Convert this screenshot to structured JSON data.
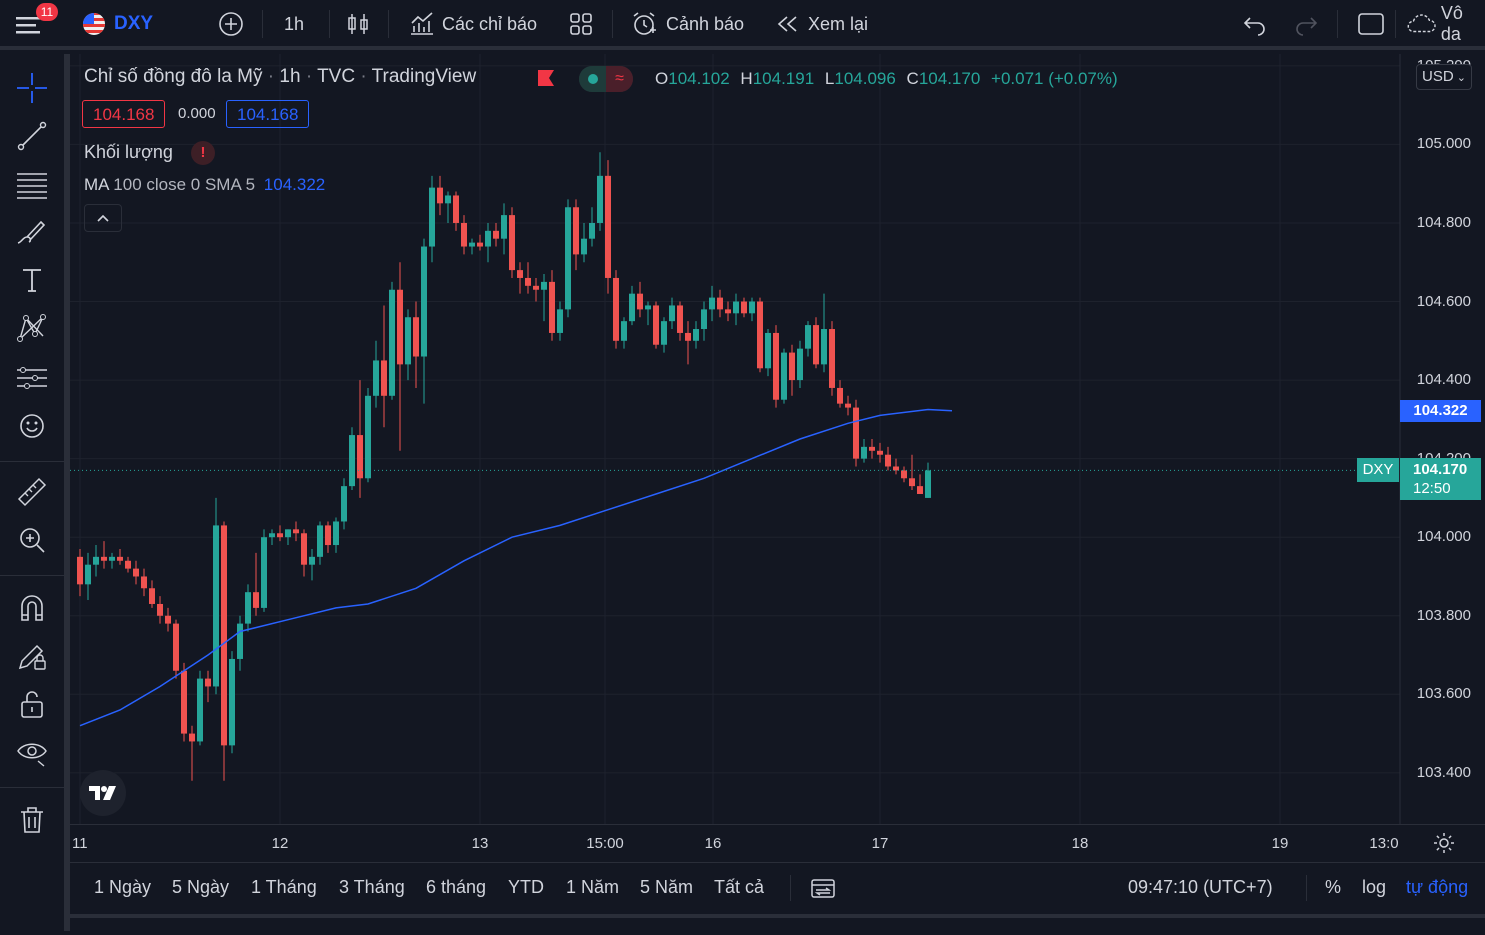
{
  "topbar": {
    "notification_count": "11",
    "symbol": "DXY",
    "interval": "1h",
    "indicators_label": "Các chỉ báo",
    "alerts_label": "Cảnh báo",
    "replay_label": "Xem lại",
    "right_label": "Vô da"
  },
  "legend": {
    "title": "Chỉ số đồng đô la Mỹ",
    "interval": "1h",
    "exchange": "TVC",
    "source": "TradingView",
    "open_label": "O",
    "open": "104.102",
    "high_label": "H",
    "high": "104.191",
    "low_label": "L",
    "low": "104.096",
    "close_label": "C",
    "close": "104.170",
    "change": "+0.071 (+0.07%)",
    "bid": "104.168",
    "spread": "0.000",
    "ask": "104.168",
    "volume_label": "Khối lượng",
    "volume_warning": "!",
    "ma_label": "MA",
    "ma_params": "100 close 0 SMA 5",
    "ma_value": "104.322"
  },
  "price_axis": {
    "currency": "USD",
    "ticks": [
      "105.200",
      "105.000",
      "104.800",
      "104.600",
      "104.400",
      "104.200",
      "104.000",
      "103.800",
      "103.600",
      "103.400"
    ],
    "ma_tag": "104.322",
    "last_symbol": "DXY",
    "last_price": "104.170",
    "countdown": "12:50"
  },
  "time_axis": {
    "labels": [
      "11",
      "12",
      "13",
      "15:00",
      "16",
      "17",
      "18",
      "19",
      "13:0"
    ]
  },
  "bottombar": {
    "ranges": [
      "1 Ngày",
      "5 Ngày",
      "1 Tháng",
      "3 Tháng",
      "6 tháng",
      "YTD",
      "1 Năm",
      "5 Năm",
      "Tất cả"
    ],
    "clock": "09:47:10 (UTC+7)",
    "percent_label": "%",
    "log_label": "log",
    "auto_label": "tự động"
  },
  "colors": {
    "up": "#26a69a",
    "down": "#ef5350",
    "ma": "#2962ff",
    "background": "#131722"
  },
  "chart_data": {
    "type": "candlestick",
    "ylim": [
      103.28,
      105.22
    ],
    "y_ticks": [
      105.2,
      105.0,
      104.8,
      104.6,
      104.4,
      104.2,
      104.0,
      103.8,
      103.6,
      103.4
    ],
    "last_price": 104.17,
    "candles": [
      {
        "o": 103.95,
        "h": 103.97,
        "l": 103.85,
        "c": 103.88
      },
      {
        "o": 103.88,
        "h": 103.96,
        "l": 103.84,
        "c": 103.93
      },
      {
        "o": 103.93,
        "h": 103.98,
        "l": 103.9,
        "c": 103.95
      },
      {
        "o": 103.95,
        "h": 103.99,
        "l": 103.92,
        "c": 103.94
      },
      {
        "o": 103.94,
        "h": 103.96,
        "l": 103.92,
        "c": 103.95
      },
      {
        "o": 103.95,
        "h": 103.97,
        "l": 103.93,
        "c": 103.94
      },
      {
        "o": 103.94,
        "h": 103.95,
        "l": 103.91,
        "c": 103.92
      },
      {
        "o": 103.92,
        "h": 103.94,
        "l": 103.88,
        "c": 103.9
      },
      {
        "o": 103.9,
        "h": 103.92,
        "l": 103.85,
        "c": 103.87
      },
      {
        "o": 103.87,
        "h": 103.89,
        "l": 103.82,
        "c": 103.83
      },
      {
        "o": 103.83,
        "h": 103.85,
        "l": 103.78,
        "c": 103.8
      },
      {
        "o": 103.8,
        "h": 103.82,
        "l": 103.76,
        "c": 103.78
      },
      {
        "o": 103.78,
        "h": 103.79,
        "l": 103.64,
        "c": 103.66
      },
      {
        "o": 103.66,
        "h": 103.68,
        "l": 103.48,
        "c": 103.5
      },
      {
        "o": 103.5,
        "h": 103.52,
        "l": 103.38,
        "c": 103.48
      },
      {
        "o": 103.48,
        "h": 103.66,
        "l": 103.47,
        "c": 103.64
      },
      {
        "o": 103.64,
        "h": 103.66,
        "l": 103.58,
        "c": 103.62
      },
      {
        "o": 103.62,
        "h": 104.1,
        "l": 103.6,
        "c": 104.03
      },
      {
        "o": 104.03,
        "h": 104.04,
        "l": 103.38,
        "c": 103.47
      },
      {
        "o": 103.47,
        "h": 103.71,
        "l": 103.45,
        "c": 103.69
      },
      {
        "o": 103.69,
        "h": 103.8,
        "l": 103.66,
        "c": 103.78
      },
      {
        "o": 103.78,
        "h": 103.88,
        "l": 103.76,
        "c": 103.86
      },
      {
        "o": 103.86,
        "h": 103.96,
        "l": 103.8,
        "c": 103.82
      },
      {
        "o": 103.82,
        "h": 104.02,
        "l": 103.81,
        "c": 104.0
      },
      {
        "o": 104.0,
        "h": 104.02,
        "l": 103.98,
        "c": 104.01
      },
      {
        "o": 104.01,
        "h": 104.03,
        "l": 103.99,
        "c": 104.0
      },
      {
        "o": 104.0,
        "h": 104.02,
        "l": 103.98,
        "c": 104.02
      },
      {
        "o": 104.02,
        "h": 104.04,
        "l": 103.99,
        "c": 104.01
      },
      {
        "o": 104.01,
        "h": 104.02,
        "l": 103.9,
        "c": 103.93
      },
      {
        "o": 103.93,
        "h": 103.97,
        "l": 103.89,
        "c": 103.95
      },
      {
        "o": 103.95,
        "h": 104.04,
        "l": 103.93,
        "c": 104.03
      },
      {
        "o": 104.03,
        "h": 104.04,
        "l": 103.96,
        "c": 103.98
      },
      {
        "o": 103.98,
        "h": 104.05,
        "l": 103.96,
        "c": 104.04
      },
      {
        "o": 104.04,
        "h": 104.15,
        "l": 104.02,
        "c": 104.13
      },
      {
        "o": 104.13,
        "h": 104.28,
        "l": 104.12,
        "c": 104.26
      },
      {
        "o": 104.26,
        "h": 104.4,
        "l": 104.1,
        "c": 104.15
      },
      {
        "o": 104.15,
        "h": 104.38,
        "l": 104.14,
        "c": 104.36
      },
      {
        "o": 104.36,
        "h": 104.5,
        "l": 104.33,
        "c": 104.45
      },
      {
        "o": 104.45,
        "h": 104.59,
        "l": 104.28,
        "c": 104.36
      },
      {
        "o": 104.36,
        "h": 104.65,
        "l": 104.35,
        "c": 104.63
      },
      {
        "o": 104.63,
        "h": 104.7,
        "l": 104.22,
        "c": 104.44
      },
      {
        "o": 104.44,
        "h": 104.58,
        "l": 104.4,
        "c": 104.56
      },
      {
        "o": 104.56,
        "h": 104.6,
        "l": 104.38,
        "c": 104.46
      },
      {
        "o": 104.46,
        "h": 104.76,
        "l": 104.34,
        "c": 104.74
      },
      {
        "o": 104.74,
        "h": 104.92,
        "l": 104.7,
        "c": 104.89
      },
      {
        "o": 104.89,
        "h": 104.92,
        "l": 104.82,
        "c": 104.85
      },
      {
        "o": 104.85,
        "h": 104.88,
        "l": 104.8,
        "c": 104.87
      },
      {
        "o": 104.87,
        "h": 104.88,
        "l": 104.78,
        "c": 104.8
      },
      {
        "o": 104.8,
        "h": 104.82,
        "l": 104.72,
        "c": 104.74
      },
      {
        "o": 104.74,
        "h": 104.76,
        "l": 104.72,
        "c": 104.75
      },
      {
        "o": 104.75,
        "h": 104.77,
        "l": 104.73,
        "c": 104.74
      },
      {
        "o": 104.74,
        "h": 104.8,
        "l": 104.7,
        "c": 104.78
      },
      {
        "o": 104.78,
        "h": 104.8,
        "l": 104.74,
        "c": 104.76
      },
      {
        "o": 104.76,
        "h": 104.85,
        "l": 104.72,
        "c": 104.82
      },
      {
        "o": 104.82,
        "h": 104.84,
        "l": 104.66,
        "c": 104.68
      },
      {
        "o": 104.68,
        "h": 104.7,
        "l": 104.62,
        "c": 104.66
      },
      {
        "o": 104.66,
        "h": 104.7,
        "l": 104.62,
        "c": 104.64
      },
      {
        "o": 104.64,
        "h": 104.66,
        "l": 104.6,
        "c": 104.63
      },
      {
        "o": 104.63,
        "h": 104.67,
        "l": 104.55,
        "c": 104.65
      },
      {
        "o": 104.65,
        "h": 104.68,
        "l": 104.5,
        "c": 104.52
      },
      {
        "o": 104.52,
        "h": 104.6,
        "l": 104.5,
        "c": 104.58
      },
      {
        "o": 104.58,
        "h": 104.86,
        "l": 104.56,
        "c": 104.84
      },
      {
        "o": 104.84,
        "h": 104.86,
        "l": 104.68,
        "c": 104.72
      },
      {
        "o": 104.72,
        "h": 104.8,
        "l": 104.7,
        "c": 104.76
      },
      {
        "o": 104.76,
        "h": 104.84,
        "l": 104.74,
        "c": 104.8
      },
      {
        "o": 104.8,
        "h": 104.98,
        "l": 104.78,
        "c": 104.92
      },
      {
        "o": 104.92,
        "h": 104.96,
        "l": 104.62,
        "c": 104.66
      },
      {
        "o": 104.66,
        "h": 104.68,
        "l": 104.48,
        "c": 104.5
      },
      {
        "o": 104.5,
        "h": 104.56,
        "l": 104.48,
        "c": 104.55
      },
      {
        "o": 104.55,
        "h": 104.64,
        "l": 104.54,
        "c": 104.62
      },
      {
        "o": 104.62,
        "h": 104.65,
        "l": 104.56,
        "c": 104.58
      },
      {
        "o": 104.58,
        "h": 104.6,
        "l": 104.54,
        "c": 104.59
      },
      {
        "o": 104.59,
        "h": 104.6,
        "l": 104.48,
        "c": 104.49
      },
      {
        "o": 104.49,
        "h": 104.56,
        "l": 104.47,
        "c": 104.55
      },
      {
        "o": 104.55,
        "h": 104.61,
        "l": 104.53,
        "c": 104.59
      },
      {
        "o": 104.59,
        "h": 104.6,
        "l": 104.5,
        "c": 104.52
      },
      {
        "o": 104.52,
        "h": 104.55,
        "l": 104.44,
        "c": 104.5
      },
      {
        "o": 104.5,
        "h": 104.55,
        "l": 104.48,
        "c": 104.53
      },
      {
        "o": 104.53,
        "h": 104.6,
        "l": 104.5,
        "c": 104.58
      },
      {
        "o": 104.58,
        "h": 104.64,
        "l": 104.55,
        "c": 104.61
      },
      {
        "o": 104.61,
        "h": 104.63,
        "l": 104.56,
        "c": 104.58
      },
      {
        "o": 104.58,
        "h": 104.6,
        "l": 104.55,
        "c": 104.57
      },
      {
        "o": 104.57,
        "h": 104.62,
        "l": 104.54,
        "c": 104.6
      },
      {
        "o": 104.6,
        "h": 104.61,
        "l": 104.56,
        "c": 104.57
      },
      {
        "o": 104.57,
        "h": 104.61,
        "l": 104.55,
        "c": 104.6
      },
      {
        "o": 104.6,
        "h": 104.61,
        "l": 104.42,
        "c": 104.43
      },
      {
        "o": 104.43,
        "h": 104.53,
        "l": 104.41,
        "c": 104.52
      },
      {
        "o": 104.52,
        "h": 104.54,
        "l": 104.33,
        "c": 104.35
      },
      {
        "o": 104.35,
        "h": 104.48,
        "l": 104.34,
        "c": 104.47
      },
      {
        "o": 104.47,
        "h": 104.49,
        "l": 104.36,
        "c": 104.4
      },
      {
        "o": 104.4,
        "h": 104.5,
        "l": 104.38,
        "c": 104.48
      },
      {
        "o": 104.48,
        "h": 104.55,
        "l": 104.46,
        "c": 104.54
      },
      {
        "o": 104.54,
        "h": 104.56,
        "l": 104.43,
        "c": 104.44
      },
      {
        "o": 104.44,
        "h": 104.62,
        "l": 104.42,
        "c": 104.53
      },
      {
        "o": 104.53,
        "h": 104.55,
        "l": 104.36,
        "c": 104.38
      },
      {
        "o": 104.38,
        "h": 104.4,
        "l": 104.33,
        "c": 104.34
      },
      {
        "o": 104.34,
        "h": 104.36,
        "l": 104.31,
        "c": 104.33
      },
      {
        "o": 104.33,
        "h": 104.35,
        "l": 104.18,
        "c": 104.2
      },
      {
        "o": 104.2,
        "h": 104.25,
        "l": 104.19,
        "c": 104.23
      },
      {
        "o": 104.23,
        "h": 104.25,
        "l": 104.2,
        "c": 104.22
      },
      {
        "o": 104.22,
        "h": 104.24,
        "l": 104.19,
        "c": 104.21
      },
      {
        "o": 104.21,
        "h": 104.23,
        "l": 104.17,
        "c": 104.18
      },
      {
        "o": 104.18,
        "h": 104.2,
        "l": 104.16,
        "c": 104.17
      },
      {
        "o": 104.17,
        "h": 104.18,
        "l": 104.14,
        "c": 104.15
      },
      {
        "o": 104.15,
        "h": 104.21,
        "l": 104.12,
        "c": 104.13
      },
      {
        "o": 104.13,
        "h": 104.16,
        "l": 104.11,
        "c": 104.11
      },
      {
        "o": 104.1,
        "h": 104.19,
        "l": 104.1,
        "c": 104.17
      }
    ],
    "ma_line": {
      "name": "MA 100 close 0 SMA 5",
      "points": [
        [
          0,
          103.52
        ],
        [
          5,
          103.56
        ],
        [
          10,
          103.62
        ],
        [
          16,
          103.7
        ],
        [
          20,
          103.76
        ],
        [
          26,
          103.79
        ],
        [
          32,
          103.82
        ],
        [
          36,
          103.83
        ],
        [
          42,
          103.87
        ],
        [
          48,
          103.94
        ],
        [
          54,
          104.0
        ],
        [
          60,
          104.03
        ],
        [
          66,
          104.07
        ],
        [
          72,
          104.11
        ],
        [
          78,
          104.15
        ],
        [
          84,
          104.2
        ],
        [
          90,
          104.25
        ],
        [
          96,
          104.29
        ],
        [
          100,
          104.31
        ],
        [
          106,
          104.325
        ],
        [
          109,
          104.322
        ]
      ]
    }
  }
}
